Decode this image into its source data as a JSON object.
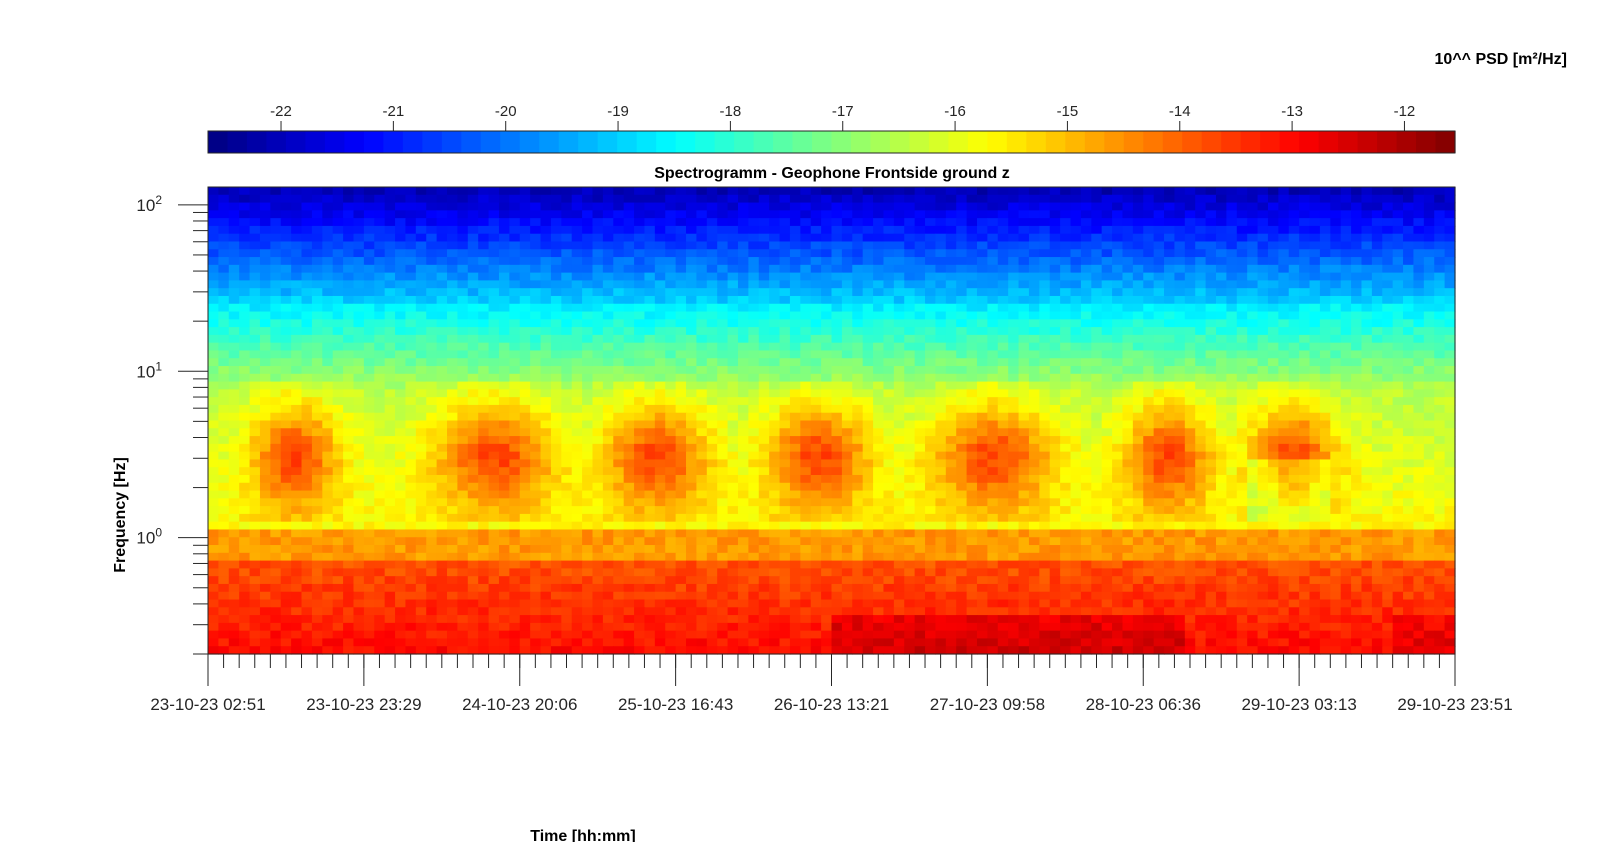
{
  "chart_data": {
    "type": "heatmap",
    "title": "Spectrogramm - Geophone Frontside ground z",
    "xlabel": "Time [hh:mm]",
    "ylabel": "Frequency [Hz]",
    "yscale": "log",
    "ylim": [
      0.2,
      128
    ],
    "y_ticks": [
      {
        "base": "10",
        "exp": "2",
        "value": 100
      },
      {
        "base": "10",
        "exp": "1",
        "value": 10
      },
      {
        "base": "10",
        "exp": "0",
        "value": 1
      }
    ],
    "x_ticks": [
      "23-10-23 02:51",
      "23-10-23 23:29",
      "24-10-23 20:06",
      "25-10-23 16:43",
      "26-10-23 13:21",
      "27-10-23 09:58",
      "28-10-23 06:36",
      "29-10-23 03:13",
      "29-10-23 23:51"
    ],
    "colorbar": {
      "label": "10^^ PSD [m²/Hz]",
      "ticks": [
        "-22",
        "-21",
        "-20",
        "-19",
        "-18",
        "-17",
        "-16",
        "-15",
        "-14",
        "-13",
        "-12"
      ],
      "range": [
        -22.65,
        -11.55
      ],
      "colormap": "jet",
      "location": "top"
    },
    "grid": false
  }
}
